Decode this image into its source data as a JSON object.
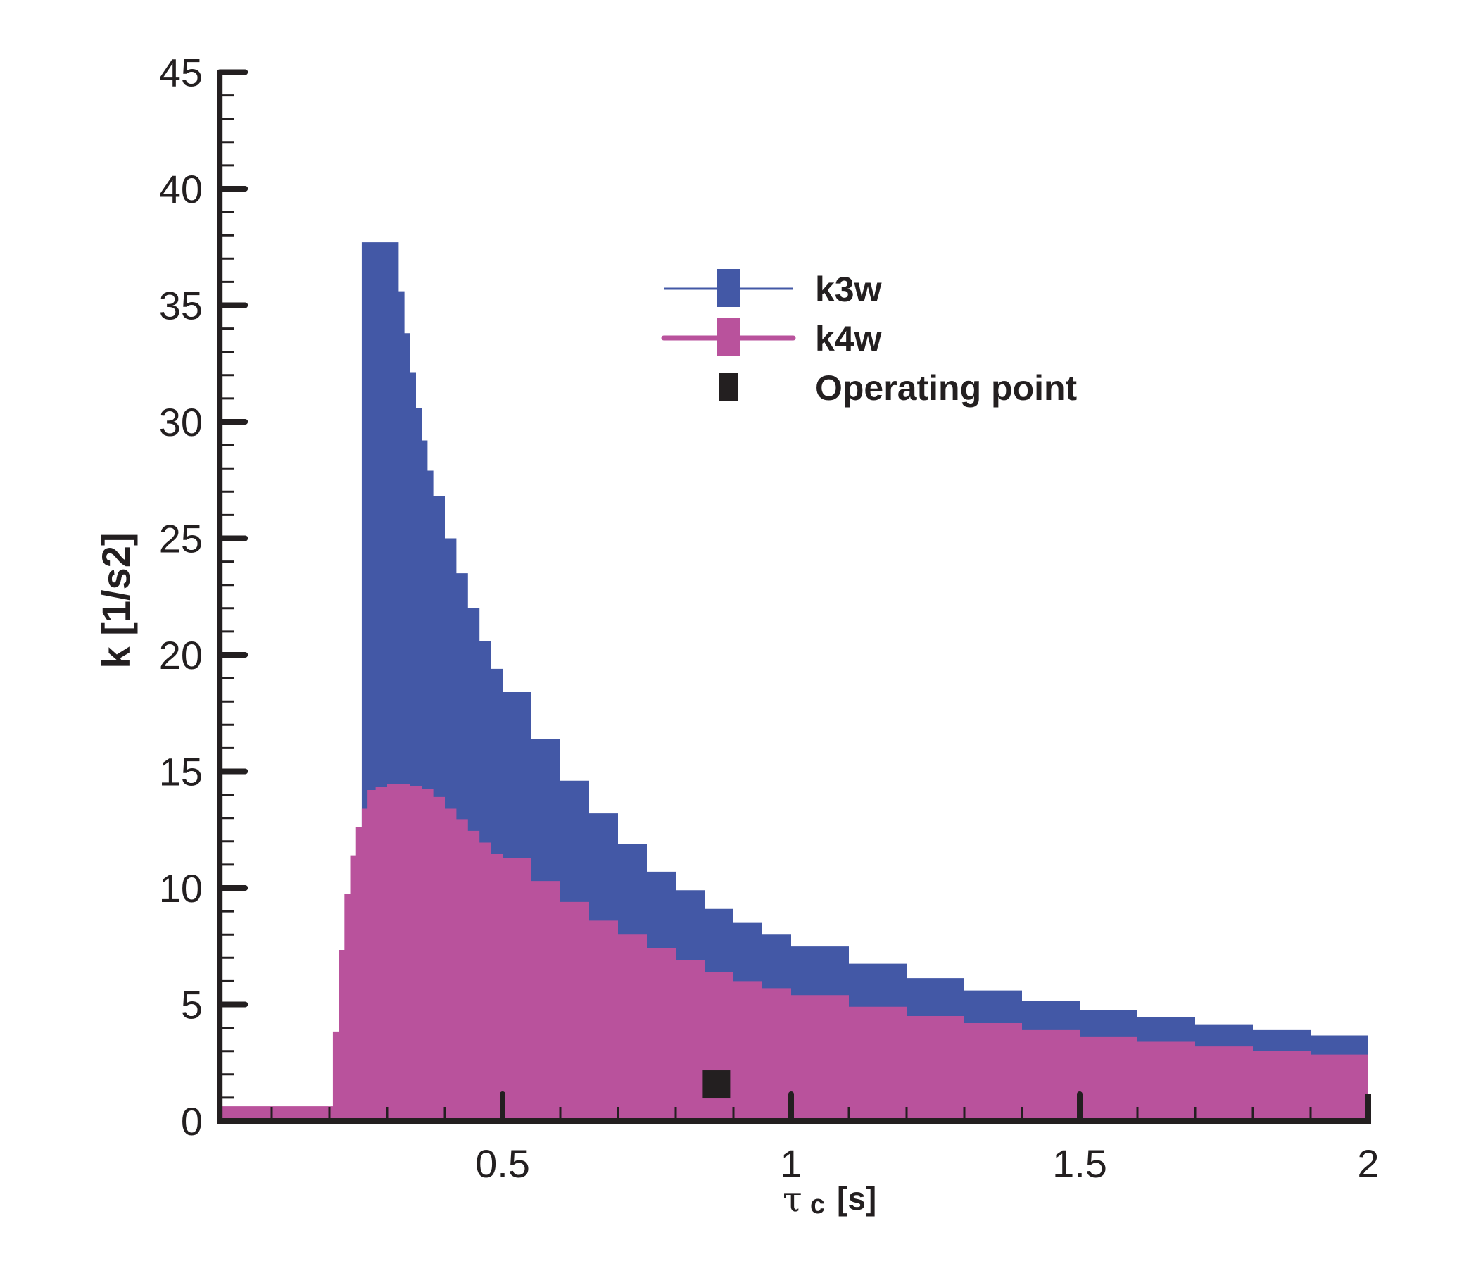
{
  "chart_data": {
    "type": "area",
    "title": "",
    "xlabel": "τc [s]",
    "xlabel_parts": {
      "symbol": "τ",
      "subscript": "c",
      "unit": "[s]"
    },
    "ylabel": "k [1/s2]",
    "xlim": [
      0.01,
      2
    ],
    "ylim": [
      0,
      45
    ],
    "x_major_ticks": [
      0.5,
      1,
      1.5,
      2
    ],
    "x_tick_labels": [
      "0.5",
      "1",
      "1.5",
      "2"
    ],
    "x_minor_step": 0.1,
    "y_major_ticks": [
      0,
      5,
      10,
      15,
      20,
      25,
      30,
      35,
      40,
      45
    ],
    "y_tick_labels": [
      "0",
      "5",
      "10",
      "15",
      "20",
      "25",
      "30",
      "35",
      "40",
      "45"
    ],
    "y_minor_step": 1,
    "grid": false,
    "legend_position": "upper right (inside)",
    "colors": {
      "k3w": "#4358a6",
      "k4w": "#b9529c",
      "operating_point": "#231f20",
      "axis": "#231f20"
    },
    "series": [
      {
        "name": "k3w",
        "style": "stepped filled area",
        "x": [
          0.256,
          0.32,
          0.33,
          0.34,
          0.35,
          0.36,
          0.37,
          0.38,
          0.4,
          0.42,
          0.44,
          0.46,
          0.48,
          0.5,
          0.55,
          0.6,
          0.65,
          0.7,
          0.75,
          0.8,
          0.85,
          0.9,
          0.95,
          1.0,
          1.1,
          1.2,
          1.3,
          1.4,
          1.5,
          1.6,
          1.7,
          1.8,
          1.9,
          2.0
        ],
        "values": [
          37.7,
          35.6,
          33.8,
          32.1,
          30.6,
          29.2,
          27.9,
          26.8,
          25.0,
          23.5,
          22.0,
          20.6,
          19.4,
          18.4,
          16.4,
          14.6,
          13.2,
          11.9,
          10.7,
          9.9,
          9.1,
          8.5,
          8.0,
          7.49,
          6.75,
          6.13,
          5.6,
          5.15,
          4.77,
          4.45,
          4.15,
          3.9,
          3.67,
          3.47
        ]
      },
      {
        "name": "k4w",
        "style": "stepped filled area",
        "x": [
          0.01,
          0.206,
          0.216,
          0.226,
          0.236,
          0.246,
          0.256,
          0.266,
          0.28,
          0.3,
          0.32,
          0.34,
          0.36,
          0.38,
          0.4,
          0.42,
          0.44,
          0.46,
          0.48,
          0.5,
          0.55,
          0.6,
          0.65,
          0.7,
          0.75,
          0.8,
          0.85,
          0.9,
          0.95,
          1.0,
          1.1,
          1.2,
          1.3,
          1.4,
          1.5,
          1.6,
          1.7,
          1.8,
          1.9,
          2.0
        ],
        "values": [
          0.63,
          3.84,
          7.34,
          9.76,
          11.4,
          12.6,
          13.4,
          14.2,
          14.35,
          14.47,
          14.45,
          14.38,
          14.26,
          13.9,
          13.4,
          12.95,
          12.45,
          11.95,
          11.45,
          11.3,
          10.3,
          9.4,
          8.6,
          8.0,
          7.4,
          6.9,
          6.4,
          6.0,
          5.7,
          5.4,
          4.9,
          4.5,
          4.2,
          3.9,
          3.6,
          3.4,
          3.2,
          3.0,
          2.85,
          2.69
        ]
      }
    ],
    "points": [
      {
        "name": "Operating point",
        "x": 0.87,
        "y": 1.57,
        "marker": "square"
      }
    ],
    "legend": [
      {
        "label": "k3w",
        "marker": "line-square"
      },
      {
        "label": "k4w",
        "marker": "line-square"
      },
      {
        "label": "Operating point",
        "marker": "square"
      }
    ]
  }
}
